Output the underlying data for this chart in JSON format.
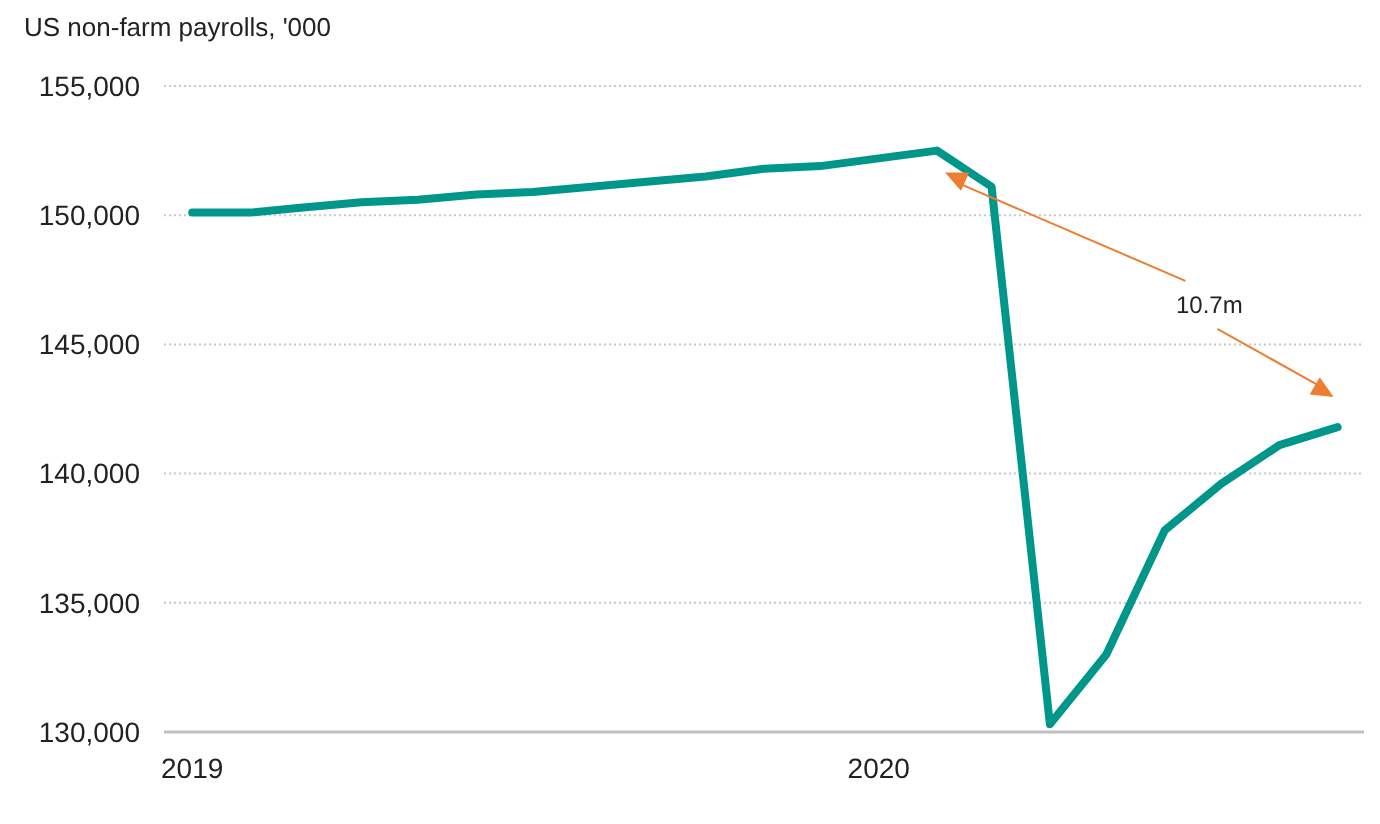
{
  "chart_data": {
    "type": "line",
    "title": "US non-farm payrolls, '000",
    "x": [
      "2019-01",
      "2019-02",
      "2019-03",
      "2019-04",
      "2019-05",
      "2019-06",
      "2019-07",
      "2019-08",
      "2019-09",
      "2019-10",
      "2019-11",
      "2019-12",
      "2020-01",
      "2020-02",
      "2020-03",
      "2020-04",
      "2020-05",
      "2020-06",
      "2020-07",
      "2020-08",
      "2020-09"
    ],
    "series": [
      {
        "color": "#00968a",
        "values": [
          150100,
          150100,
          150300,
          150500,
          150600,
          150800,
          150900,
          151100,
          151300,
          151500,
          151800,
          151900,
          152200,
          152500,
          151100,
          130300,
          133000,
          137800,
          139600,
          141100,
          141800
        ]
      }
    ],
    "xlim": [
      "2018-12-17",
      "2020-09-15"
    ],
    "xticks": [
      {
        "value": "2019-01",
        "label": "2019"
      },
      {
        "value": "2020-01",
        "label": "2020"
      }
    ],
    "ylim": [
      130000,
      155000
    ],
    "yticks": [
      {
        "value": 130000,
        "label": "130,000"
      },
      {
        "value": 135000,
        "label": "135,000"
      },
      {
        "value": 140000,
        "label": "140,000"
      },
      {
        "value": 145000,
        "label": "145,000"
      },
      {
        "value": 150000,
        "label": "150,000"
      },
      {
        "value": 155000,
        "label": "155,000"
      }
    ],
    "grid": "y",
    "marker": "none",
    "line_style": "solid",
    "annotations": [
      "10.7m"
    ]
  }
}
